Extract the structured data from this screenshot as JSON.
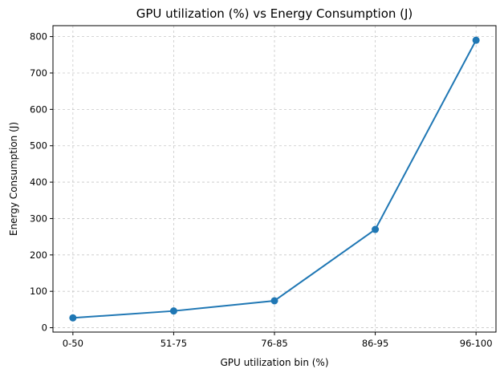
{
  "chart_data": {
    "type": "line",
    "title": "GPU utilization (%) vs Energy Consumption (J)",
    "xlabel": "GPU utilization bin (%)",
    "ylabel": "Energy Consumption (J)",
    "categories": [
      "0-50",
      "51-75",
      "76-85",
      "86-95",
      "96-100"
    ],
    "series": [
      {
        "values": [
          27,
          46,
          74,
          270,
          790
        ],
        "color": "#1f77b4",
        "marker": "circle"
      }
    ],
    "ylim": [
      -12,
      830
    ],
    "yticks": [
      0,
      100,
      200,
      300,
      400,
      500,
      600,
      700,
      800
    ],
    "grid": true
  }
}
